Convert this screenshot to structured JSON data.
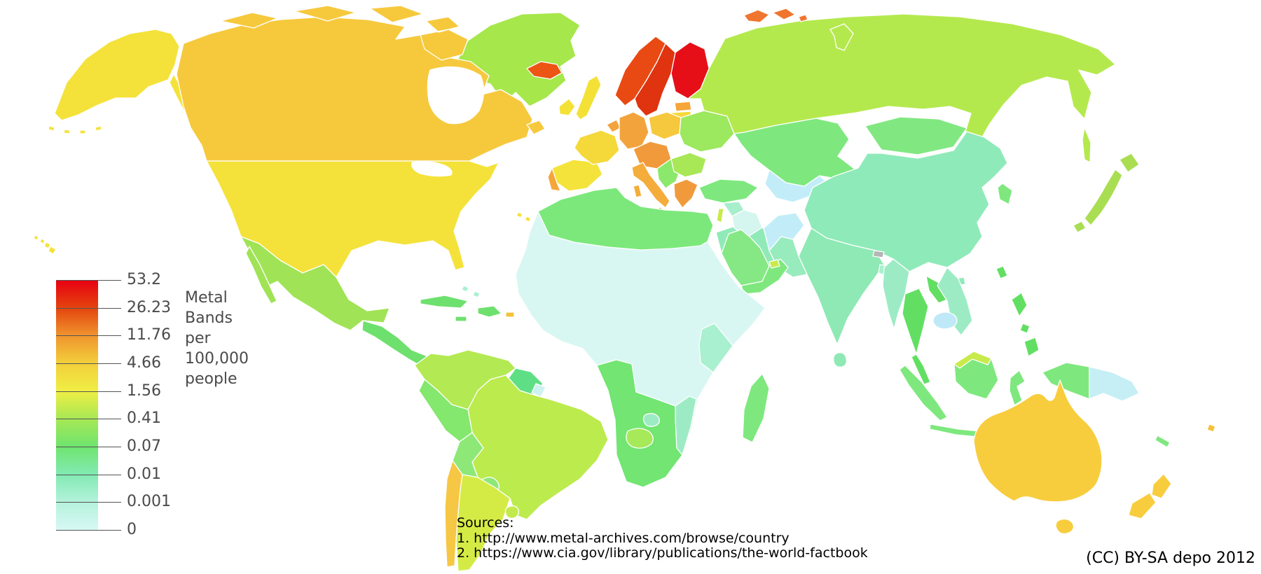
{
  "legend": {
    "title_lines": [
      "Metal",
      "Bands",
      "per",
      "100,000",
      "people"
    ],
    "ticks": [
      "53.2",
      "26.23",
      "11.76",
      "4.66",
      "1.56",
      "0.41",
      "0.07",
      "0.01",
      "0.001",
      "0"
    ],
    "gradient_stops": [
      "#e80012",
      "#e4430e",
      "#f0942e",
      "#f2cf3b",
      "#f0ee44",
      "#a6e854",
      "#6fe46f",
      "#82eab2",
      "#b4f2dc",
      "#d8f8f4"
    ],
    "text_color": "#4a4a4a"
  },
  "sources": {
    "heading": "Sources:",
    "lines": [
      "1. http://www.metal-archives.com/browse/country",
      "2. https://www.cia.gov/library/publications/the-world-factbook"
    ]
  },
  "attribution": "(CC) BY-SA depo 2012",
  "map": {
    "sea_color": "#ffffff",
    "border_color": "#ffffff",
    "regions": [
      {
        "id": "greenland",
        "name": "Greenland",
        "color": "#a6e74b"
      },
      {
        "id": "iceland",
        "name": "Iceland",
        "color": "#ec5514"
      },
      {
        "id": "alaska",
        "name": "Alaska (USA)",
        "color": "#f4e23a"
      },
      {
        "id": "alaska-panhandle",
        "name": "Alaska panhandle",
        "color": "#f4e23a"
      },
      {
        "id": "aleutians",
        "name": "Aleutian Islands",
        "color": "#f4e23a"
      },
      {
        "id": "canada",
        "name": "Canada",
        "color": "#f6c93d"
      },
      {
        "id": "arctic-islands",
        "name": "Canadian Arctic islands",
        "color": "#f6c93d"
      },
      {
        "id": "newfoundland",
        "name": "Newfoundland",
        "color": "#f6c93d"
      },
      {
        "id": "usa",
        "name": "United States",
        "color": "#f4e23a"
      },
      {
        "id": "hudson-bay",
        "name": "Hudson Bay",
        "color": "#ffffff"
      },
      {
        "id": "great-lakes",
        "name": "Great Lakes",
        "color": "#ffffff"
      },
      {
        "id": "mexico",
        "name": "Mexico",
        "color": "#a0e356"
      },
      {
        "id": "baja",
        "name": "Baja California",
        "color": "#a0e356"
      },
      {
        "id": "central-america",
        "name": "Central America",
        "color": "#6ee06e"
      },
      {
        "id": "cuba",
        "name": "Cuba",
        "color": "#6ee06e"
      },
      {
        "id": "hispaniola",
        "name": "Hispaniola",
        "color": "#6ee06e"
      },
      {
        "id": "jamaica",
        "name": "Jamaica",
        "color": "#6ee06e"
      },
      {
        "id": "puerto-rico",
        "name": "Puerto Rico",
        "color": "#f4c23a"
      },
      {
        "id": "bahamas",
        "name": "Bahamas",
        "color": "#a8f0cf"
      },
      {
        "id": "hawaii",
        "name": "Hawaii (USA)",
        "color": "#f4e23a"
      },
      {
        "id": "colombia-venezuela",
        "name": "Colombia and Venezuela",
        "color": "#b3e952"
      },
      {
        "id": "guyanas",
        "name": "Guyana and Suriname",
        "color": "#5fdf85"
      },
      {
        "id": "french-guiana",
        "name": "French Guiana",
        "color": "#cdf3f0"
      },
      {
        "id": "brazil",
        "name": "Brazil",
        "color": "#bceb4d"
      },
      {
        "id": "peru",
        "name": "Peru and Ecuador",
        "color": "#84e76e"
      },
      {
        "id": "bolivia",
        "name": "Bolivia",
        "color": "#8ee878"
      },
      {
        "id": "paraguay",
        "name": "Paraguay",
        "color": "#8ee878"
      },
      {
        "id": "chile",
        "name": "Chile",
        "color": "#f6c744"
      },
      {
        "id": "argentina",
        "name": "Argentina",
        "color": "#d5eb45"
      },
      {
        "id": "uruguay",
        "name": "Uruguay",
        "color": "#c3ea4c"
      },
      {
        "id": "ireland",
        "name": "Ireland",
        "color": "#f4e136"
      },
      {
        "id": "uk",
        "name": "United Kingdom",
        "color": "#f4e136"
      },
      {
        "id": "norway",
        "name": "Norway",
        "color": "#e94a13"
      },
      {
        "id": "sweden",
        "name": "Sweden",
        "color": "#e0330f"
      },
      {
        "id": "finland",
        "name": "Finland",
        "color": "#e60f18"
      },
      {
        "id": "denmark",
        "name": "Denmark",
        "color": "#f3a33c"
      },
      {
        "id": "estonia",
        "name": "Estonia",
        "color": "#f5a53a"
      },
      {
        "id": "latvia-lithuania",
        "name": "Latvia and Lithuania",
        "color": "#f5d83a"
      },
      {
        "id": "iberia",
        "name": "Spain",
        "color": "#f4e33b"
      },
      {
        "id": "portugal",
        "name": "Portugal",
        "color": "#f5a53a"
      },
      {
        "id": "france",
        "name": "France",
        "color": "#f5d83a"
      },
      {
        "id": "benelux",
        "name": "Benelux",
        "color": "#f3a33c"
      },
      {
        "id": "germany",
        "name": "Germany",
        "color": "#f3a33c"
      },
      {
        "id": "poland",
        "name": "Poland",
        "color": "#f6c83e"
      },
      {
        "id": "central-europe",
        "name": "Central Europe",
        "color": "#f09a3c"
      },
      {
        "id": "italy",
        "name": "Italy",
        "color": "#f4ad3b"
      },
      {
        "id": "sicily-sardinia",
        "name": "Sicily and Sardinia",
        "color": "#f4ad3b"
      },
      {
        "id": "balkans",
        "name": "Western Balkans",
        "color": "#8ce86a"
      },
      {
        "id": "romania-bulgaria",
        "name": "Romania and Bulgaria",
        "color": "#a8e857"
      },
      {
        "id": "greece",
        "name": "Greece",
        "color": "#f09a3c"
      },
      {
        "id": "crete",
        "name": "Crete",
        "color": "#f09a3c"
      },
      {
        "id": "ukraine-belarus",
        "name": "Ukraine and Belarus",
        "color": "#9ce85e"
      },
      {
        "id": "russia",
        "name": "Russia",
        "color": "#b4e94d"
      },
      {
        "id": "sakhalin",
        "name": "Sakhalin",
        "color": "#b4e94d"
      },
      {
        "id": "svalbard",
        "name": "Svalbard",
        "color": "#f0752f"
      },
      {
        "id": "novaya-zemlya",
        "name": "Novaya Zemlya",
        "color": "#b4e94d"
      },
      {
        "id": "kazakhstan",
        "name": "Kazakhstan",
        "color": "#7ee87e"
      },
      {
        "id": "central-asia",
        "name": "Uzbekistan and Turkmenistan",
        "color": "#c2edf8"
      },
      {
        "id": "caspian-sea",
        "name": "Caspian Sea",
        "color": "#ffffff"
      },
      {
        "id": "mongolia",
        "name": "Mongolia",
        "color": "#81e881"
      },
      {
        "id": "china",
        "name": "China",
        "color": "#8feab9"
      },
      {
        "id": "south-korea",
        "name": "South Korea",
        "color": "#7ee87e"
      },
      {
        "id": "japan",
        "name": "Japan",
        "color": "#a9de52"
      },
      {
        "id": "taiwan",
        "name": "Taiwan",
        "color": "#62df62"
      },
      {
        "id": "hainan",
        "name": "Hainan",
        "color": "#8feab9"
      },
      {
        "id": "india",
        "name": "India",
        "color": "#8fe9b4"
      },
      {
        "id": "sri-lanka",
        "name": "Sri Lanka",
        "color": "#8fe9b4"
      },
      {
        "id": "bangladesh",
        "name": "Bangladesh",
        "color": "#a8f0cf"
      },
      {
        "id": "bhutan",
        "name": "Bhutan",
        "color": "#b5b5b5"
      },
      {
        "id": "pakistan",
        "name": "Pakistan",
        "color": "#97ebbd"
      },
      {
        "id": "afghanistan",
        "name": "Afghanistan",
        "color": "#c2edf8"
      },
      {
        "id": "iran",
        "name": "Iran",
        "color": "#90eab8"
      },
      {
        "id": "turkey",
        "name": "Turkey",
        "color": "#7ee87e"
      },
      {
        "id": "syria",
        "name": "Syria",
        "color": "#a7eecb"
      },
      {
        "id": "iraq",
        "name": "Iraq",
        "color": "#d5f5ef"
      },
      {
        "id": "israel",
        "name": "Israel and Lebanon",
        "color": "#c8ea4a"
      },
      {
        "id": "saudi-arabia",
        "name": "Saudi Arabia",
        "color": "#85e885"
      },
      {
        "id": "yemen-oman",
        "name": "Yemen and Oman",
        "color": "#7ee87e"
      },
      {
        "id": "uae",
        "name": "United Arab Emirates",
        "color": "#c8ea4a"
      },
      {
        "id": "africa-interior",
        "name": "Central Africa and Sahara",
        "color": "#d9f7f2"
      },
      {
        "id": "north-africa",
        "name": "North Africa",
        "color": "#7ce87c"
      },
      {
        "id": "east-africa",
        "name": "Kenya and Uganda",
        "color": "#a8f0cf"
      },
      {
        "id": "southern-africa",
        "name": "Southern Africa",
        "color": "#72e572"
      },
      {
        "id": "botswana",
        "name": "Botswana",
        "color": "#a6e959"
      },
      {
        "id": "zimbabwe",
        "name": "Zimbabwe",
        "color": "#9debc4"
      },
      {
        "id": "mozambique",
        "name": "Mozambique",
        "color": "#9debc4"
      },
      {
        "id": "madagascar",
        "name": "Madagascar",
        "color": "#7ee87e"
      },
      {
        "id": "canary-islands",
        "name": "Canary Islands",
        "color": "#f4e23a"
      },
      {
        "id": "myanmar",
        "name": "Myanmar",
        "color": "#9debc4"
      },
      {
        "id": "thailand",
        "name": "Thailand",
        "color": "#62df62"
      },
      {
        "id": "laos",
        "name": "Laos",
        "color": "#62df62"
      },
      {
        "id": "vietnam",
        "name": "Vietnam",
        "color": "#9debc4"
      },
      {
        "id": "cambodia",
        "name": "Cambodia",
        "color": "#bfe9f7"
      },
      {
        "id": "malay-peninsula",
        "name": "Malay Peninsula",
        "color": "#62df62"
      },
      {
        "id": "sumatra",
        "name": "Sumatra (Indonesia)",
        "color": "#7ee87e"
      },
      {
        "id": "java",
        "name": "Java (Indonesia)",
        "color": "#7ee87e"
      },
      {
        "id": "borneo",
        "name": "Borneo",
        "color": "#7ee87e"
      },
      {
        "id": "malaysia-north-borneo",
        "name": "Malaysia (North Borneo)",
        "color": "#c8ea4a"
      },
      {
        "id": "sulawesi",
        "name": "Sulawesi (Indonesia)",
        "color": "#7ee87e"
      },
      {
        "id": "lesser-sunda",
        "name": "Lesser Sunda Islands",
        "color": "#7ee87e"
      },
      {
        "id": "philippines",
        "name": "Philippines",
        "color": "#62df62"
      },
      {
        "id": "new-guinea-west",
        "name": "Western New Guinea",
        "color": "#7ee87e"
      },
      {
        "id": "papua-new-guinea",
        "name": "Papua New Guinea",
        "color": "#c5eff5"
      },
      {
        "id": "australia",
        "name": "Australia",
        "color": "#f8cd3d"
      },
      {
        "id": "tasmania",
        "name": "Tasmania",
        "color": "#f8cd3d"
      },
      {
        "id": "new-zealand",
        "name": "New Zealand",
        "color": "#f8cd3d"
      },
      {
        "id": "new-caledonia",
        "name": "New Caledonia",
        "color": "#7ee87e"
      },
      {
        "id": "fiji",
        "name": "Fiji",
        "color": "#f4c23a"
      }
    ]
  }
}
